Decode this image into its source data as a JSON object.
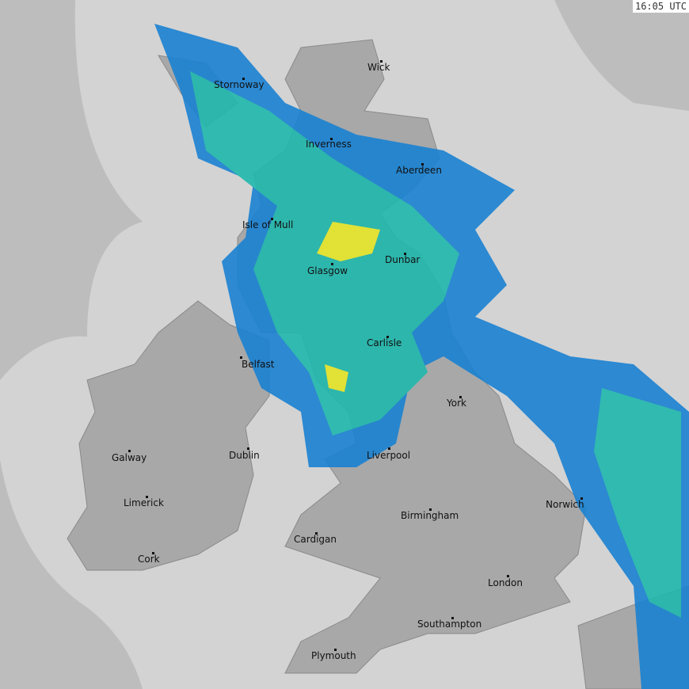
{
  "timestamp": "16:05 UTC",
  "colors": {
    "outside_coverage": "#bdbdbd",
    "coverage": "#d3d3d3",
    "land": "#a8a8a8",
    "light_rain": "#1a82d2",
    "moderate_rain": "#20b8ad",
    "heavy_rain": "#e8e82a"
  },
  "cities": [
    {
      "name": "Wick"
    },
    {
      "name": "Stornoway"
    },
    {
      "name": "Inverness"
    },
    {
      "name": "Aberdeen"
    },
    {
      "name": "Isle of Mull"
    },
    {
      "name": "Dunbar"
    },
    {
      "name": "Glasgow"
    },
    {
      "name": "Carlisle"
    },
    {
      "name": "Belfast"
    },
    {
      "name": "York"
    },
    {
      "name": "Galway"
    },
    {
      "name": "Dublin"
    },
    {
      "name": "Liverpool"
    },
    {
      "name": "Limerick"
    },
    {
      "name": "Norwich"
    },
    {
      "name": "Birmingham"
    },
    {
      "name": "Cardigan"
    },
    {
      "name": "Cork"
    },
    {
      "name": "London"
    },
    {
      "name": "Southampton"
    },
    {
      "name": "Plymouth"
    }
  ]
}
